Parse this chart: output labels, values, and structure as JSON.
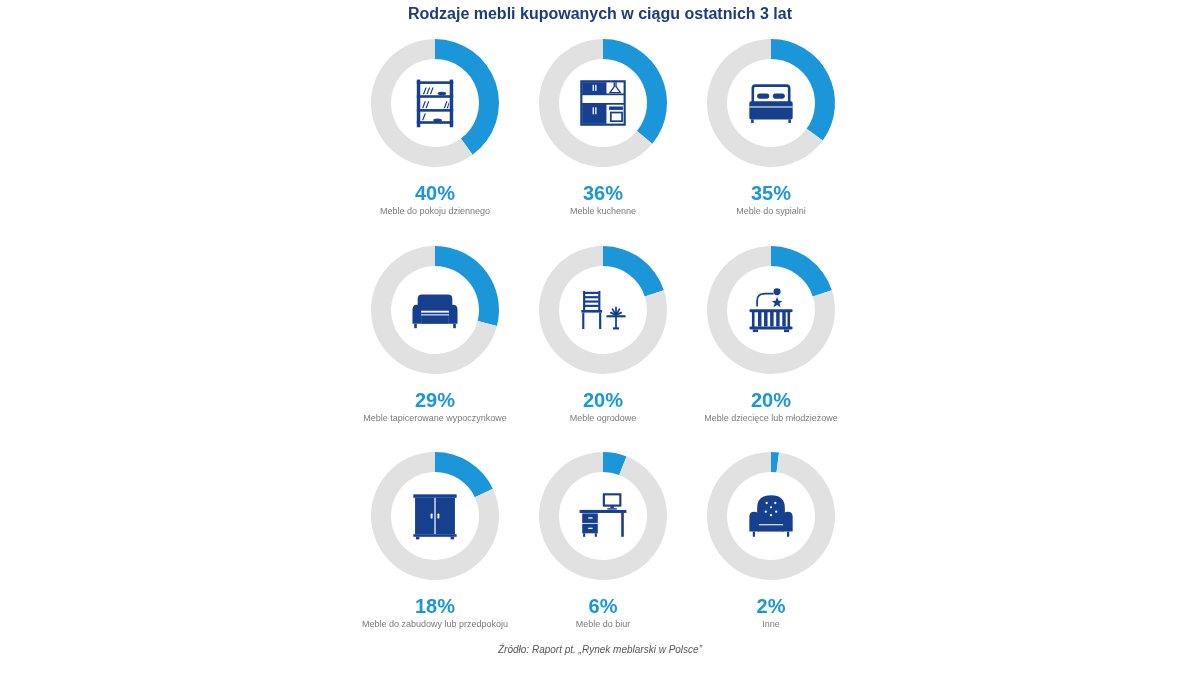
{
  "chart_data": [
    {
      "type": "other",
      "title": "Rodzaje mebli kupowanych w ciągu ostatnich 3 lat",
      "annotations": [
        "Źródło: Raport pt. „Rynek meblarski w Polsce”"
      ]
    },
    {
      "type": "donut",
      "title": "Meble do pokoju dziennego",
      "categories": [
        null,
        null
      ],
      "values": [
        40,
        60
      ],
      "annotations": [
        "40%"
      ],
      "colors": [
        "#1b96d8",
        "#e1e1e1"
      ]
    },
    {
      "type": "donut",
      "title": "Meble kuchenne",
      "categories": [
        null,
        null
      ],
      "values": [
        36,
        64
      ],
      "annotations": [
        "36%"
      ],
      "colors": [
        "#1b96d8",
        "#e1e1e1"
      ]
    },
    {
      "type": "donut",
      "title": "Meble do sypialni",
      "categories": [
        null,
        null
      ],
      "values": [
        35,
        65
      ],
      "annotations": [
        "35%"
      ],
      "colors": [
        "#1b96d8",
        "#e1e1e1"
      ]
    },
    {
      "type": "donut",
      "title": "Meble tapicerowane wypoczynkowe",
      "categories": [
        null,
        null
      ],
      "values": [
        29,
        71
      ],
      "annotations": [
        "29%"
      ],
      "colors": [
        "#1b96d8",
        "#e1e1e1"
      ]
    },
    {
      "type": "donut",
      "title": "Meble ogrodowe",
      "categories": [
        null,
        null
      ],
      "values": [
        20,
        80
      ],
      "annotations": [
        "20%"
      ],
      "colors": [
        "#1b96d8",
        "#e1e1e1"
      ]
    },
    {
      "type": "donut",
      "title": "Meble dziecięce lub młodzieżowe",
      "categories": [
        null,
        null
      ],
      "values": [
        20,
        80
      ],
      "annotations": [
        "20%"
      ],
      "colors": [
        "#1b96d8",
        "#e1e1e1"
      ]
    },
    {
      "type": "donut",
      "title": "Meble do zabudowy lub przedpokoju",
      "categories": [
        null,
        null
      ],
      "values": [
        18,
        82
      ],
      "annotations": [
        "18%"
      ],
      "colors": [
        "#1b96d8",
        "#e1e1e1"
      ]
    },
    {
      "type": "donut",
      "title": "Meble do biur",
      "categories": [
        null,
        null
      ],
      "values": [
        6,
        94
      ],
      "annotations": [
        "6%"
      ],
      "colors": [
        "#1b96d8",
        "#e1e1e1"
      ]
    },
    {
      "type": "donut",
      "title": "Inne",
      "categories": [
        null,
        null
      ],
      "values": [
        2,
        98
      ],
      "annotations": [
        "2%"
      ],
      "colors": [
        "#1b96d8",
        "#e1e1e1"
      ]
    }
  ]
}
